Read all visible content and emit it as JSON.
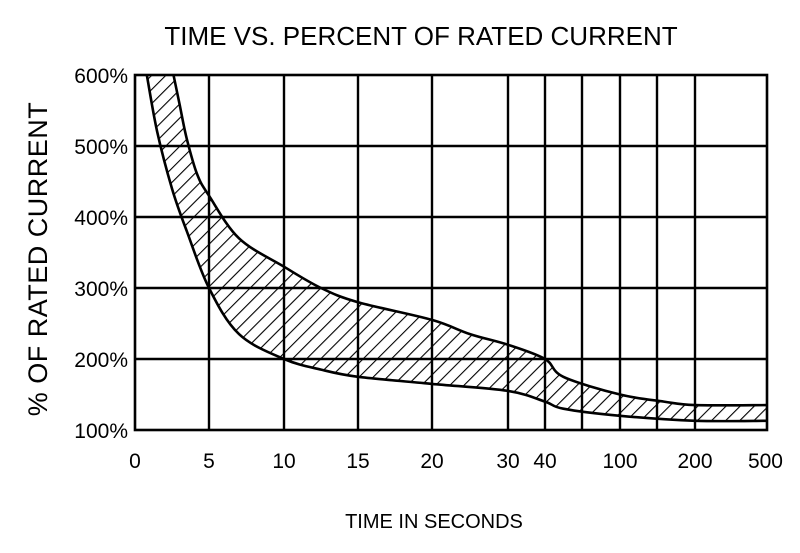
{
  "chart_data": {
    "type": "area",
    "title": "TIME VS. PERCENT OF RATED CURRENT",
    "xlabel": "TIME IN SECONDS",
    "ylabel": "% OF RATED CURRENT",
    "x_tick_labels": [
      "0",
      "5",
      "10",
      "15",
      "20",
      "30",
      "40",
      "100",
      "200",
      "500"
    ],
    "y_tick_labels": [
      "100%",
      "200%",
      "300%",
      "400%",
      "500%",
      "600%"
    ],
    "ylim": [
      100,
      600
    ],
    "grid": true,
    "legend": "none",
    "band_fill": "hatched",
    "series": [
      {
        "x": [
          0.8,
          1.5,
          2.5,
          3.5,
          5,
          7,
          10,
          12.5,
          15,
          20,
          30,
          40,
          50,
          100,
          200,
          500
        ],
        "values": [
          600,
          520,
          440,
          380,
          300,
          235,
          200,
          185,
          175,
          165,
          155,
          140,
          130,
          120,
          113,
          113
        ]
      },
      {
        "x": [
          2.6,
          3,
          3.5,
          4.2,
          5,
          7,
          10,
          12.5,
          15,
          20,
          25,
          30,
          40,
          50,
          100,
          150,
          200,
          500
        ],
        "values": [
          600,
          560,
          510,
          460,
          430,
          370,
          330,
          300,
          280,
          255,
          235,
          220,
          200,
          175,
          150,
          140,
          135,
          135
        ]
      }
    ],
    "colors": {
      "line": "#000000",
      "background": "#ffffff"
    }
  }
}
